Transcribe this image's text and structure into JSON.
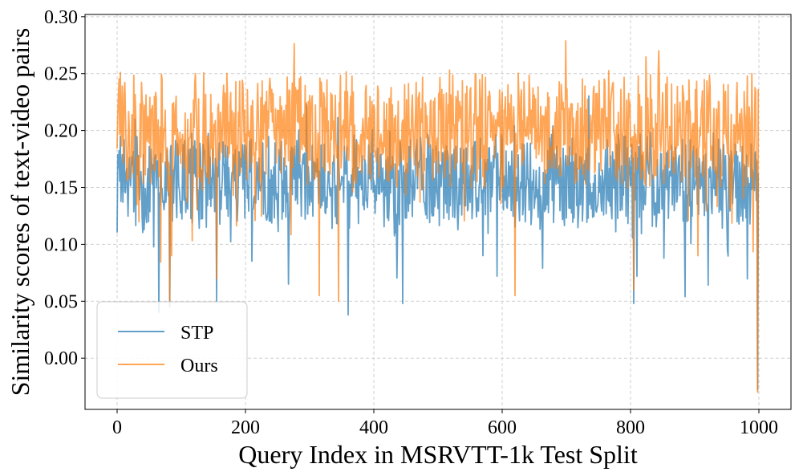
{
  "chart_data": {
    "type": "line",
    "title": "",
    "xlabel": "Query Index in MSRVTT-1k Test Split",
    "ylabel": "Similarity scores of text-video pairs",
    "xlim": [
      -50,
      1050
    ],
    "ylim": [
      -0.045,
      0.302
    ],
    "xticks": [
      0,
      200,
      400,
      600,
      800,
      1000
    ],
    "xtick_labels": [
      "0",
      "200",
      "400",
      "600",
      "800",
      "1000"
    ],
    "yticks": [
      0.0,
      0.05,
      0.1,
      0.15,
      0.2,
      0.25,
      0.3
    ],
    "ytick_labels": [
      "0.00",
      "0.05",
      "0.10",
      "0.15",
      "0.20",
      "0.25",
      "0.30"
    ],
    "grid": true,
    "legend_position": "lower-left",
    "series": [
      {
        "name": "STP",
        "color": "#1f77b4",
        "x_start": 0,
        "x_end": 999,
        "mean": 0.155,
        "spread": 0.03,
        "low_points": [
          [
            65,
            0.04
          ],
          [
            82,
            0.045
          ],
          [
            155,
            0.05
          ],
          [
            360,
            0.038
          ],
          [
            445,
            0.048
          ],
          [
            805,
            0.048
          ],
          [
            885,
            0.054
          ],
          [
            998,
            -0.028
          ]
        ]
      },
      {
        "name": "Ours",
        "color": "#ff7f0e",
        "x_start": 0,
        "x_end": 999,
        "mean": 0.2,
        "spread": 0.035,
        "low_points": [
          [
            82,
            0.05
          ],
          [
            155,
            0.07
          ],
          [
            315,
            0.055
          ],
          [
            345,
            0.05
          ],
          [
            620,
            0.055
          ],
          [
            805,
            0.06
          ],
          [
            905,
            0.09
          ],
          [
            998,
            -0.03
          ]
        ]
      }
    ]
  }
}
